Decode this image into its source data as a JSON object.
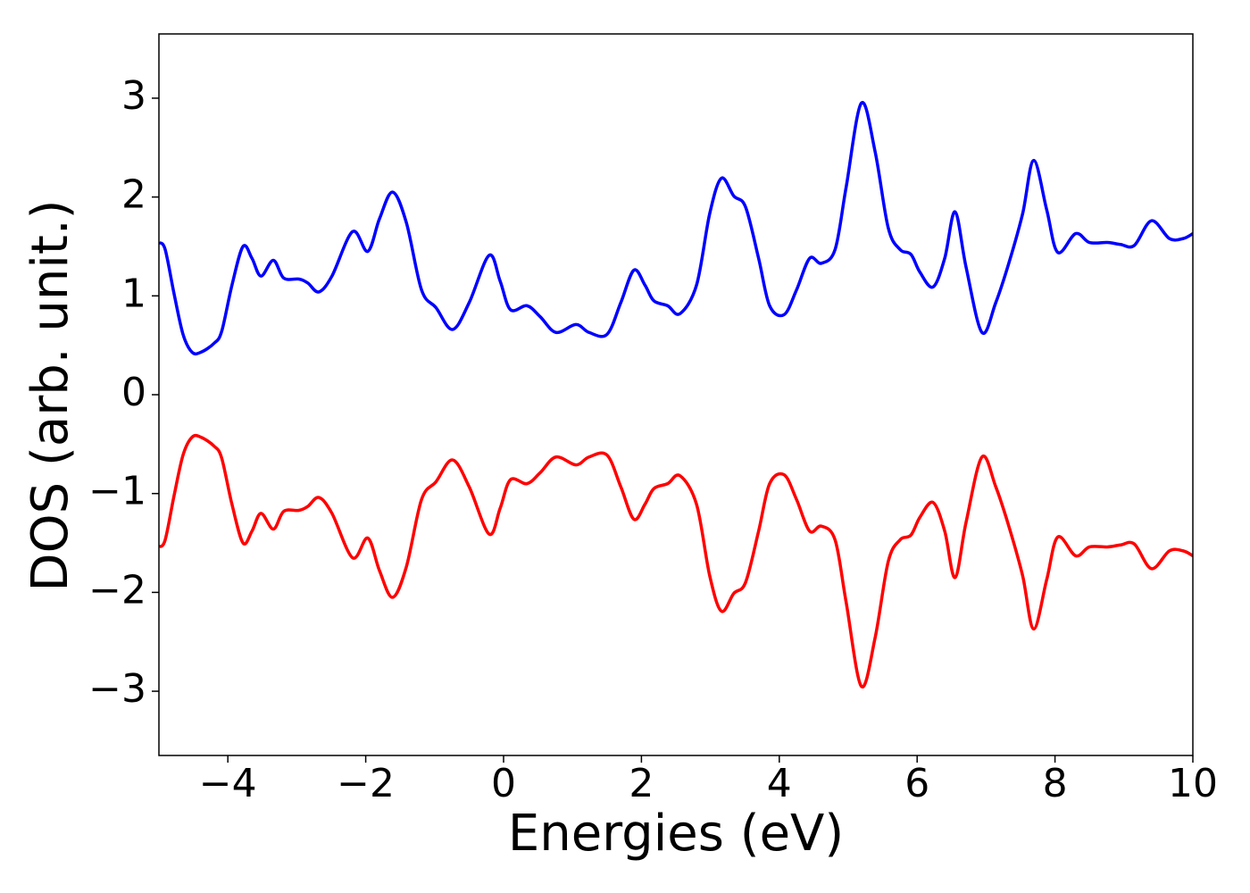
{
  "chart_data": {
    "type": "line",
    "xlabel": "Energies (eV)",
    "ylabel": "DOS (arb. unit.)",
    "xlim": [
      -5,
      10
    ],
    "ylim": [
      -3.65,
      3.65
    ],
    "xticks": [
      {
        "value": -4,
        "label": "−4"
      },
      {
        "value": -2,
        "label": "−2"
      },
      0,
      2,
      4,
      6,
      8,
      10
    ],
    "yticks": [
      {
        "value": -3,
        "label": "−3"
      },
      {
        "value": -2,
        "label": "−2"
      },
      {
        "value": -1,
        "label": "−1"
      },
      0,
      1,
      2,
      3
    ],
    "x": [
      -5,
      -4.91,
      -4.78,
      -4.65,
      -4.52,
      -4.39,
      -4.2,
      -4.09,
      -3.94,
      -3.78,
      -3.65,
      -3.52,
      -3.34,
      -3.19,
      -2.97,
      -2.84,
      -2.68,
      -2.49,
      -2.19,
      -1.97,
      -1.8,
      -1.61,
      -1.41,
      -1.19,
      -0.98,
      -0.74,
      -0.5,
      -0.21,
      -0.05,
      0.1,
      0.34,
      0.53,
      0.76,
      1.05,
      1.24,
      1.5,
      1.7,
      1.89,
      2.05,
      2.18,
      2.38,
      2.56,
      2.8,
      2.99,
      3.16,
      3.34,
      3.51,
      3.7,
      3.86,
      4.07,
      4.25,
      4.44,
      4.61,
      4.81,
      4.97,
      5.19,
      5.39,
      5.58,
      5.75,
      5.91,
      6.04,
      6.23,
      6.4,
      6.55,
      6.71,
      6.94,
      7.14,
      7.33,
      7.53,
      7.69,
      7.88,
      8.04,
      8.3,
      8.5,
      8.76,
      8.95,
      9.15,
      9.4,
      9.66,
      9.86,
      10
    ],
    "series": [
      {
        "color": "#0000ff",
        "values": [
          1.54,
          1.47,
          1.02,
          0.61,
          0.43,
          0.43,
          0.52,
          0.64,
          1.11,
          1.5,
          1.38,
          1.2,
          1.36,
          1.18,
          1.17,
          1.13,
          1.04,
          1.2,
          1.65,
          1.45,
          1.78,
          2.05,
          1.74,
          1.06,
          0.88,
          0.66,
          0.93,
          1.41,
          1.15,
          0.86,
          0.9,
          0.79,
          0.63,
          0.71,
          0.63,
          0.61,
          0.93,
          1.26,
          1.11,
          0.95,
          0.9,
          0.82,
          1.11,
          1.83,
          2.19,
          2.01,
          1.9,
          1.38,
          0.9,
          0.81,
          1.06,
          1.38,
          1.33,
          1.47,
          2.1,
          2.95,
          2.46,
          1.69,
          1.47,
          1.42,
          1.24,
          1.09,
          1.38,
          1.85,
          1.29,
          0.63,
          0.93,
          1.33,
          1.83,
          2.37,
          1.87,
          1.44,
          1.63,
          1.54,
          1.54,
          1.52,
          1.51,
          1.76,
          1.58,
          1.58,
          1.63
        ]
      },
      {
        "color": "#ff0000",
        "values": [
          -1.54,
          -1.47,
          -1.02,
          -0.61,
          -0.43,
          -0.43,
          -0.52,
          -0.64,
          -1.11,
          -1.5,
          -1.38,
          -1.2,
          -1.36,
          -1.18,
          -1.17,
          -1.13,
          -1.04,
          -1.2,
          -1.65,
          -1.45,
          -1.78,
          -2.05,
          -1.74,
          -1.06,
          -0.88,
          -0.66,
          -0.93,
          -1.41,
          -1.15,
          -0.86,
          -0.9,
          -0.79,
          -0.63,
          -0.71,
          -0.63,
          -0.61,
          -0.93,
          -1.26,
          -1.11,
          -0.95,
          -0.9,
          -0.82,
          -1.11,
          -1.83,
          -2.19,
          -2.01,
          -1.9,
          -1.38,
          -0.9,
          -0.81,
          -1.06,
          -1.38,
          -1.33,
          -1.47,
          -2.1,
          -2.95,
          -2.46,
          -1.69,
          -1.47,
          -1.42,
          -1.24,
          -1.09,
          -1.38,
          -1.85,
          -1.29,
          -0.63,
          -0.93,
          -1.33,
          -1.83,
          -2.37,
          -1.87,
          -1.44,
          -1.63,
          -1.54,
          -1.54,
          -1.52,
          -1.51,
          -1.76,
          -1.58,
          -1.58,
          -1.63
        ]
      }
    ]
  }
}
